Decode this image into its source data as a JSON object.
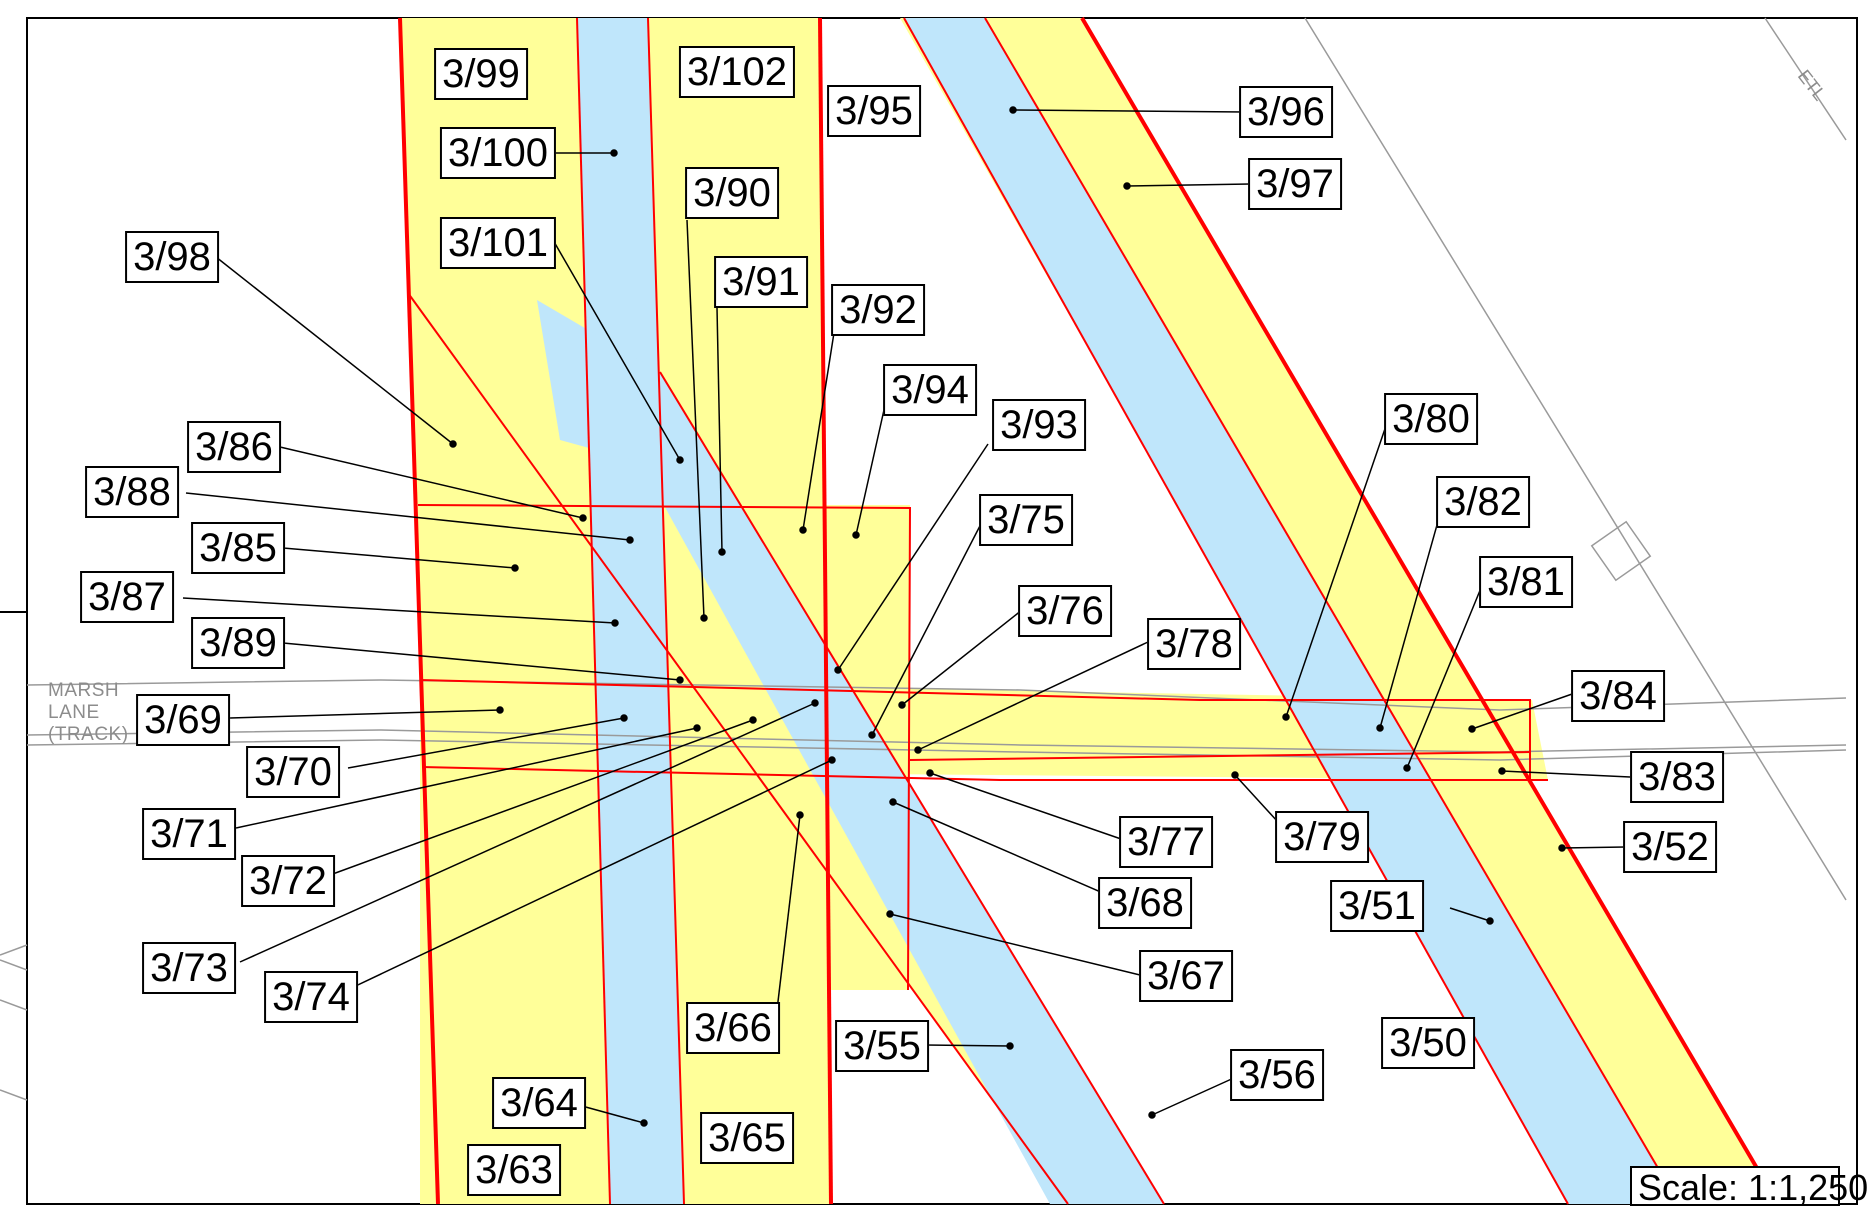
{
  "road": {
    "line1": "MARSH",
    "line2": "LANE",
    "line3": "(TRACK)"
  },
  "etl_label": "ETL",
  "scale": "Scale: 1:1,250",
  "colors": {
    "yellow": "#ffff99",
    "blue": "#bfe6fb",
    "red": "#ff0000",
    "grey": "#9a9a9a"
  },
  "labels": [
    {
      "id": "3/99",
      "text": "3/99"
    },
    {
      "id": "3/102",
      "text": "3/102"
    },
    {
      "id": "3/95",
      "text": "3/95"
    },
    {
      "id": "3/96",
      "text": "3/96"
    },
    {
      "id": "3/100",
      "text": "3/100"
    },
    {
      "id": "3/97",
      "text": "3/97"
    },
    {
      "id": "3/90",
      "text": "3/90"
    },
    {
      "id": "3/101",
      "text": "3/101"
    },
    {
      "id": "3/98",
      "text": "3/98"
    },
    {
      "id": "3/91",
      "text": "3/91"
    },
    {
      "id": "3/92",
      "text": "3/92"
    },
    {
      "id": "3/94",
      "text": "3/94"
    },
    {
      "id": "3/93",
      "text": "3/93"
    },
    {
      "id": "3/80",
      "text": "3/80"
    },
    {
      "id": "3/86",
      "text": "3/86"
    },
    {
      "id": "3/88",
      "text": "3/88"
    },
    {
      "id": "3/82",
      "text": "3/82"
    },
    {
      "id": "3/75",
      "text": "3/75"
    },
    {
      "id": "3/85",
      "text": "3/85"
    },
    {
      "id": "3/81",
      "text": "3/81"
    },
    {
      "id": "3/87",
      "text": "3/87"
    },
    {
      "id": "3/76",
      "text": "3/76"
    },
    {
      "id": "3/78",
      "text": "3/78"
    },
    {
      "id": "3/89",
      "text": "3/89"
    },
    {
      "id": "3/84",
      "text": "3/84"
    },
    {
      "id": "3/69",
      "text": "3/69"
    },
    {
      "id": "3/83",
      "text": "3/83"
    },
    {
      "id": "3/70",
      "text": "3/70"
    },
    {
      "id": "3/77",
      "text": "3/77"
    },
    {
      "id": "3/79",
      "text": "3/79"
    },
    {
      "id": "3/52",
      "text": "3/52"
    },
    {
      "id": "3/71",
      "text": "3/71"
    },
    {
      "id": "3/72",
      "text": "3/72"
    },
    {
      "id": "3/68",
      "text": "3/68"
    },
    {
      "id": "3/51",
      "text": "3/51"
    },
    {
      "id": "3/73",
      "text": "3/73"
    },
    {
      "id": "3/67",
      "text": "3/67"
    },
    {
      "id": "3/74",
      "text": "3/74"
    },
    {
      "id": "3/66",
      "text": "3/66"
    },
    {
      "id": "3/55",
      "text": "3/55"
    },
    {
      "id": "3/50",
      "text": "3/50"
    },
    {
      "id": "3/56",
      "text": "3/56"
    },
    {
      "id": "3/64",
      "text": "3/64"
    },
    {
      "id": "3/65",
      "text": "3/65"
    },
    {
      "id": "3/63",
      "text": "3/63"
    }
  ]
}
